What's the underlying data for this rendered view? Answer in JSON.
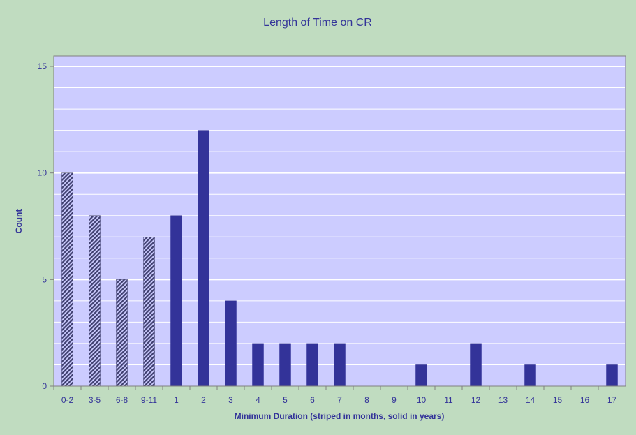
{
  "chart_data": {
    "type": "bar",
    "title": "Length of Time on CR",
    "xlabel": "Minimum Duration (striped in months, solid in years)",
    "ylabel": "Count",
    "ylim": [
      0,
      15
    ],
    "yticks": [
      "0",
      "5",
      "10",
      "15"
    ],
    "grid": true,
    "legend": "none",
    "categories": [
      "0-2",
      "3-5",
      "6-8",
      "9-11",
      "1",
      "2",
      "3",
      "4",
      "5",
      "6",
      "7",
      "8",
      "9",
      "10",
      "11",
      "12",
      "13",
      "14",
      "15",
      "16",
      "17"
    ],
    "values": [
      10,
      8,
      5,
      7,
      8,
      12,
      4,
      2,
      2,
      2,
      2,
      0,
      0,
      1,
      0,
      2,
      0,
      1,
      0,
      0,
      1
    ],
    "striped": [
      true,
      true,
      true,
      true,
      false,
      false,
      false,
      false,
      false,
      false,
      false,
      false,
      false,
      false,
      false,
      false,
      false,
      false,
      false,
      false,
      false
    ],
    "colors": {
      "background": "#c0dcc0",
      "plot_area": "#ccccff",
      "bar": "#333399",
      "stripe": "#3f3f6f",
      "text": "#333399",
      "grid": "#ffffff"
    }
  }
}
